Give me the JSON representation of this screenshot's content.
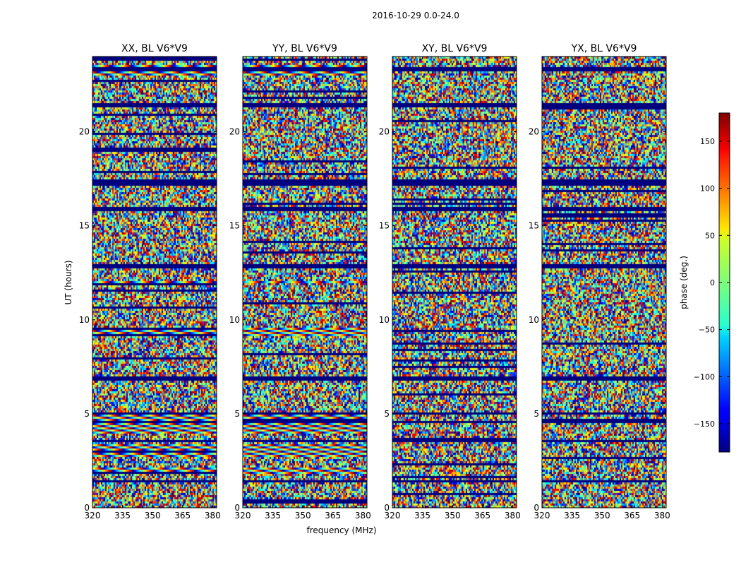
{
  "figure": {
    "suptitle": "2016-10-29 0.0-24.0"
  },
  "chart_data": {
    "type": "heatmap",
    "description_unit": "phase (deg.)",
    "xlabel": "frequency (MHz)",
    "ylabel": "UT (hours)",
    "xlim": [
      320,
      382
    ],
    "ylim": [
      0,
      24
    ],
    "xticks": [
      320,
      335,
      350,
      365,
      380
    ],
    "yticks": [
      0,
      5,
      10,
      15,
      20
    ],
    "panels": [
      {
        "title": "XX, BL V6*V9",
        "polarization": "XX"
      },
      {
        "title": "YY, BL V6*V9",
        "polarization": "YY"
      },
      {
        "title": "XY, BL V6*V9",
        "polarization": "XY"
      },
      {
        "title": "YX, BL V6*V9",
        "polarization": "YX"
      }
    ],
    "colorbar": {
      "label": "phase (deg.)",
      "range": [
        -180,
        180
      ],
      "ticks": [
        -150,
        -100,
        -50,
        0,
        50,
        100,
        150
      ],
      "colormap": "jet"
    },
    "masked_bands_hours": [
      [
        23.3,
        23.5
      ],
      [
        21.3,
        21.6
      ],
      [
        17.2,
        17.5
      ],
      [
        15.8,
        16.1
      ],
      [
        12.8,
        13.0
      ],
      [
        6.8,
        7.0
      ],
      [
        5.0,
        5.1
      ],
      [
        4.6,
        4.7
      ],
      [
        3.6,
        3.7
      ],
      [
        1.4,
        1.5
      ]
    ],
    "fringe_bands_hours": {
      "XX": [
        [
          23.0,
          23.6
        ],
        [
          12.0,
          12.1
        ],
        [
          9.2,
          9.6
        ],
        [
          4.0,
          5.0
        ],
        [
          2.8,
          3.4
        ],
        [
          1.9,
          2.2
        ]
      ],
      "YY": [
        [
          23.0,
          23.6
        ],
        [
          12.0,
          12.1
        ],
        [
          9.2,
          9.6
        ],
        [
          4.0,
          5.0
        ],
        [
          2.8,
          3.4
        ],
        [
          1.9,
          2.2
        ]
      ],
      "XY": [],
      "YX": []
    }
  }
}
